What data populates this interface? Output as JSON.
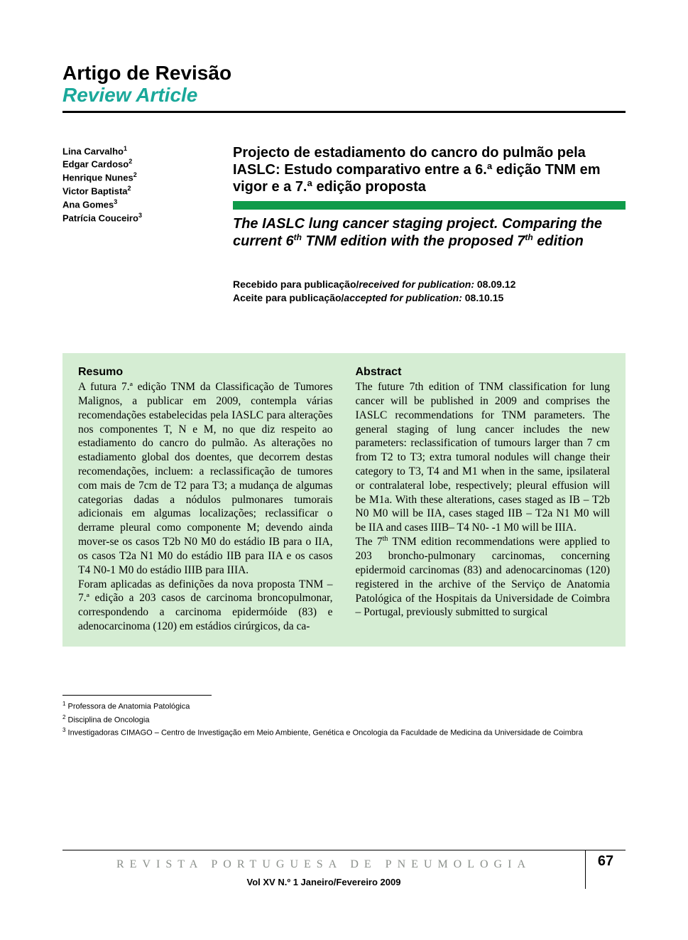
{
  "colors": {
    "page_bg": "#ffffff",
    "text": "#000000",
    "accent_teal": "#1aa89a",
    "green_bar": "#0f9b4a",
    "abstract_bg": "#d5edd3",
    "journal_name": "#8a8f8a",
    "rule": "#000000"
  },
  "fonts": {
    "sans": "Arial, Helvetica, sans-serif",
    "serif": "Georgia, 'Times New Roman', serif",
    "header_size_pt": 28,
    "author_size_pt": 13,
    "title_size_pt": 20,
    "body_size_pt": 15.5,
    "footnote_size_pt": 11
  },
  "header": {
    "type_pt": "Artigo de Revisão",
    "type_en": "Review Article"
  },
  "authors": [
    {
      "name": "Lina Carvalho",
      "aff": "1"
    },
    {
      "name": "Edgar Cardoso",
      "aff": "2"
    },
    {
      "name": "Henrique Nunes",
      "aff": "2"
    },
    {
      "name": "Victor Baptista",
      "aff": "2"
    },
    {
      "name": "Ana Gomes",
      "aff": "3"
    },
    {
      "name": "Patrícia Couceiro",
      "aff": "3"
    }
  ],
  "title": {
    "pt": "Projecto de estadiamento do cancro do pulmão pela IASLC: Estudo comparativo entre a 6.ª edição TNM em vigor e a 7.ª edição proposta",
    "en_pre": "The IASLC lung cancer staging project. Comparing the current 6",
    "en_mid": " TNM edition with the proposed 7",
    "en_post": " edition",
    "sup_th": "th"
  },
  "dates": {
    "received_label_pt": "Recebido para publicação/",
    "received_label_en": "received for publication: ",
    "received_value": "08.09.12",
    "accepted_label_pt": "Aceite para publicação/",
    "accepted_label_en": "accepted for publication: ",
    "accepted_value": "08.10.15"
  },
  "abstract": {
    "resumo_head": "Resumo",
    "resumo_body": "A futura 7.ª edição TNM da Classificação de Tumores Malignos, a publicar em 2009, contempla várias recomendações estabelecidas pela IASLC para alterações nos componentes T, N e M, no que diz respeito ao estadiamento do cancro do pulmão. As alterações no estadiamento global dos doentes, que decorrem destas recomendações, incluem: a reclassificação de tumores com mais de 7cm de T2 para T3; a mudança de algumas categorias dadas a nódulos pulmonares tumorais adicionais em algumas localizações; reclassificar o derrame pleural como componente M; devendo ainda mover-se os casos T2b N0 M0 do estádio IB para o IIA, os casos T2a N1 M0 do estádio IIB para IIA e os casos T4 N0-1 M0 do estádio IIIB para IIIA.\nForam aplicadas as definições da nova proposta TNM – 7.ª edição a 203 casos de carcinoma broncopulmonar, correspondendo a carcinoma epidermóide (83) e adenocarcinoma (120) em estádios cirúrgicos, da ca-",
    "abstract_head": "Abstract",
    "abstract_body_1": "The future 7th edition of TNM classification for lung cancer will be published in 2009 and comprises the IASLC recommendations for TNM parameters. The general staging of lung cancer includes the new parameters: reclassification of tumours larger than 7 cm from T2 to T3; extra tumoral nodules will change their category to T3, T4 and M1 when in the same, ipsilateral or contralateral lobe, respectively; pleural effusion will be M1a. With these alterations, cases staged as IB – T2b N0 M0 will be IIA, cases staged IIB – T2a N1 M0 will be IIA and cases IIIB– T4 N0- -1 M0 will be IIIA.",
    "abstract_body_2a": "The 7",
    "abstract_body_2b": " TNM edition recommendations were applied to 203 broncho-pulmonary carcinomas, concerning epidermoid carcinomas (83) and adenocarcinomas (120) registered in the archive of the Serviço de Anatomia Patológica of the Hospitais da Universidade de Coimbra – Portugal, previously submitted to surgical"
  },
  "footnotes": [
    {
      "num": "1",
      "text": "Professora de Anatomia Patológica"
    },
    {
      "num": "2",
      "text": "Disciplina de Oncologia"
    },
    {
      "num": "3",
      "text": "Investigadoras CIMAGO – Centro de Investigação em Meio Ambiente, Genética e Oncologia da Faculdade de Medicina da Universidade de Coimbra"
    }
  ],
  "footer": {
    "journal": "REVISTA PORTUGUESA DE PNEUMOLOGIA",
    "page_number": "67",
    "issue": "Vol XV  N.º 1  Janeiro/Fevereiro  2009"
  }
}
